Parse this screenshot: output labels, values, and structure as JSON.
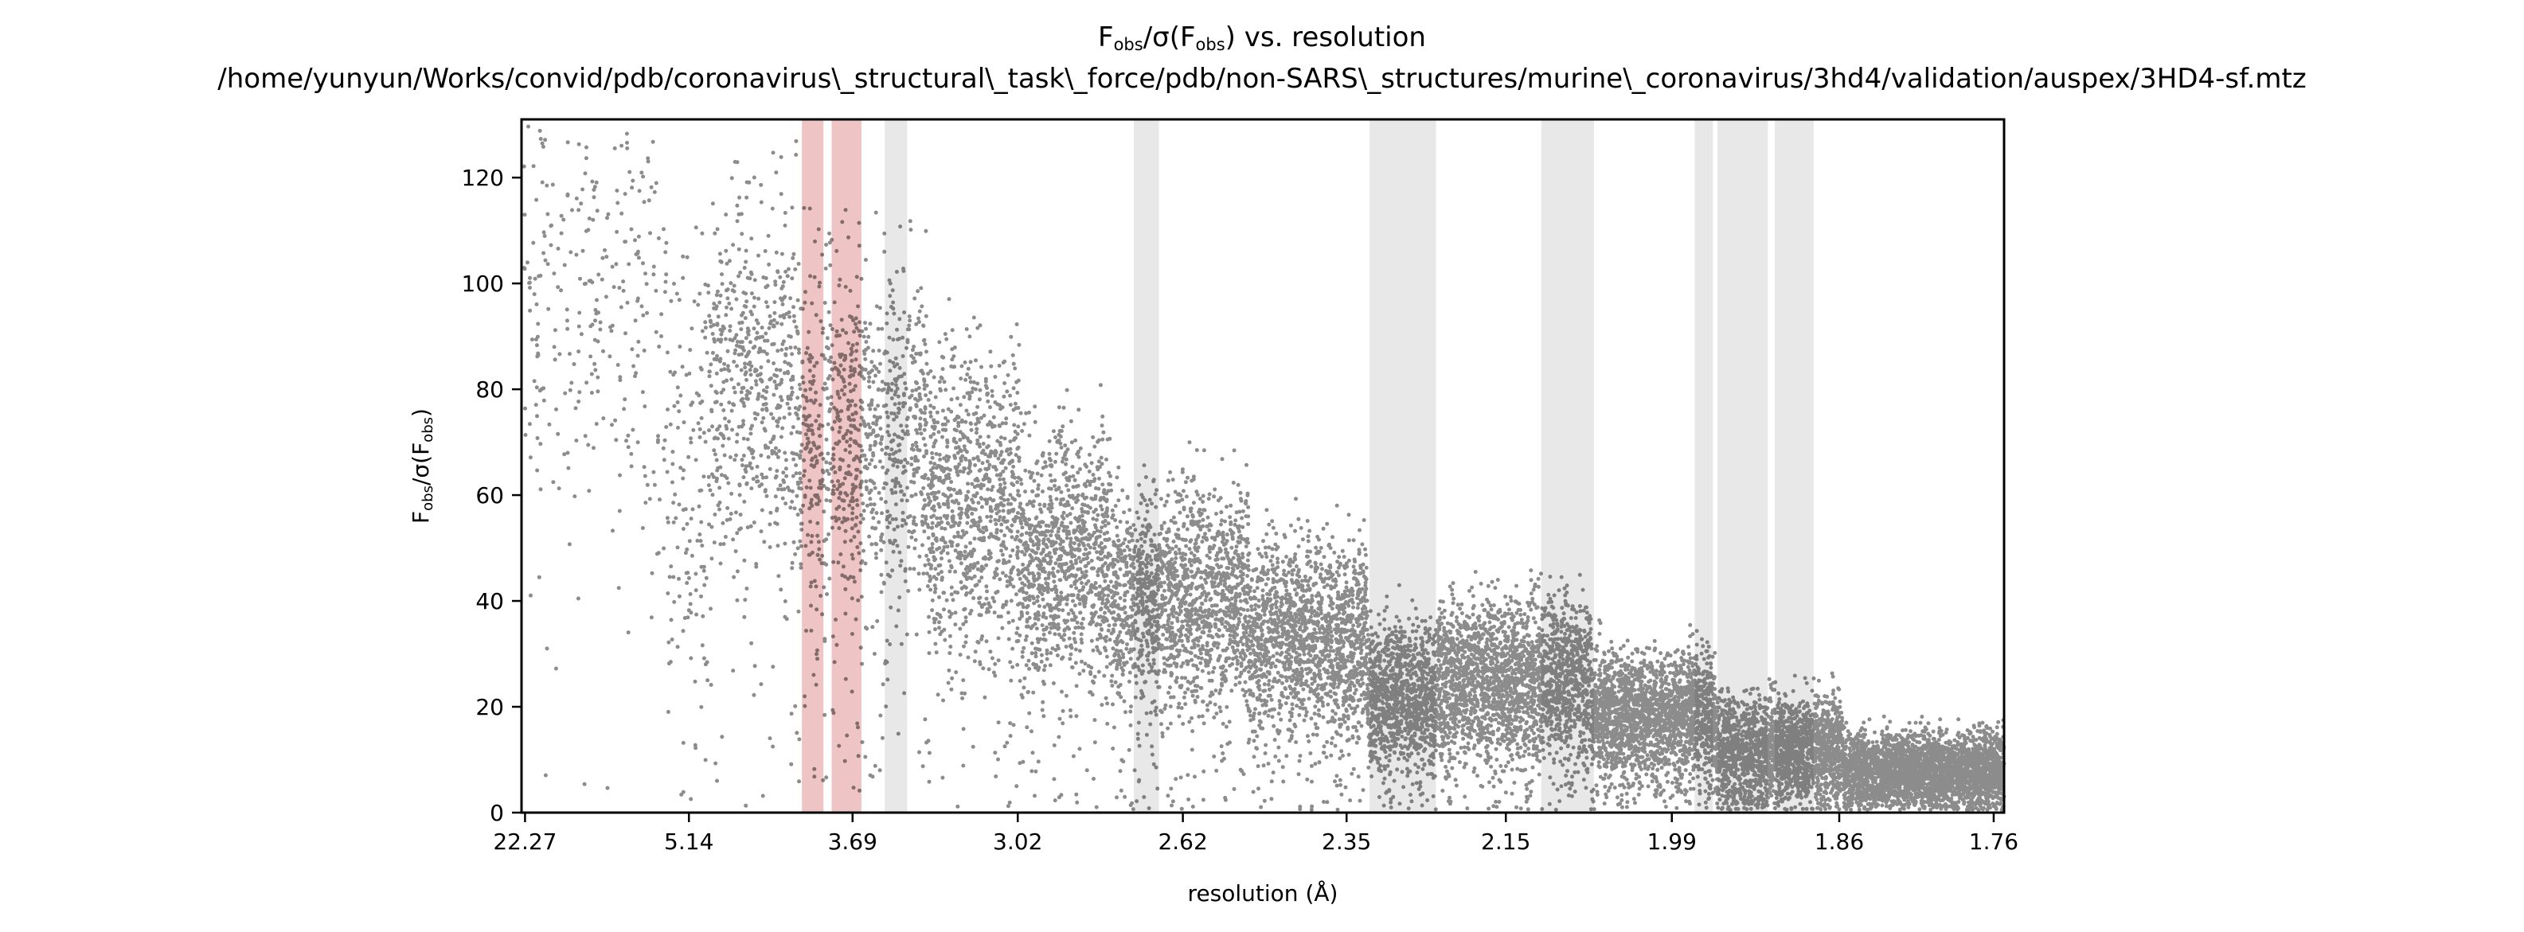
{
  "chart_data": {
    "type": "scatter",
    "title": {
      "parts": [
        {
          "text": "F",
          "sub": false
        },
        {
          "text": "obs",
          "sub": true
        },
        {
          "text": "/σ(F",
          "sub": false
        },
        {
          "text": "obs",
          "sub": true
        },
        {
          "text": ") vs. resolution",
          "sub": false
        }
      ],
      "subtitle": "/home/yunyun/Works/convid/pdb/coronavirus\\_structural\\_task\\_force/pdb/non-SARS\\_structures/murine\\_coronavirus/3hd4/validation/auspex/3HD4-sf.mtz"
    },
    "xlabel": "resolution (Å)",
    "ylabel": {
      "parts": [
        {
          "text": "F",
          "sub": false
        },
        {
          "text": "obs",
          "sub": true
        },
        {
          "text": "/σ(F",
          "sub": false
        },
        {
          "text": "obs",
          "sub": true
        },
        {
          "text": ")",
          "sub": false
        }
      ]
    },
    "x_axis_variable": "1/d^2 (Å^-2)",
    "xlim": [
      0.00125,
      0.3251
    ],
    "ylim": [
      0,
      131
    ],
    "xticks": [
      {
        "value": 0.002016,
        "label": "22.27"
      },
      {
        "value": 0.037814,
        "label": "5.14"
      },
      {
        "value": 0.073558,
        "label": "3.69"
      },
      {
        "value": 0.109646,
        "label": "3.02"
      },
      {
        "value": 0.145715,
        "label": "2.62"
      },
      {
        "value": 0.181474,
        "label": "2.35"
      },
      {
        "value": 0.216263,
        "label": "2.15"
      },
      {
        "value": 0.252525,
        "label": "1.99"
      },
      {
        "value": 0.289096,
        "label": "1.86"
      },
      {
        "value": 0.322831,
        "label": "1.76"
      }
    ],
    "yticks": [
      0,
      20,
      40,
      60,
      80,
      100,
      120
    ],
    "ice_rings_flagged": [
      {
        "x0": 0.0625,
        "x1": 0.0672
      },
      {
        "x0": 0.069,
        "x1": 0.0755
      }
    ],
    "ice_rings": [
      {
        "x0": 0.0806,
        "x1": 0.0855
      },
      {
        "x0": 0.135,
        "x1": 0.1405
      },
      {
        "x0": 0.1865,
        "x1": 0.201
      },
      {
        "x0": 0.224,
        "x1": 0.2355
      },
      {
        "x0": 0.2575,
        "x1": 0.2615
      },
      {
        "x0": 0.2625,
        "x1": 0.2735
      },
      {
        "x0": 0.275,
        "x1": 0.2835
      }
    ],
    "distribution": {
      "description": "approximate F/sigma value envelope by resolution shell (data units)",
      "shells": [
        {
          "x0": 0.00125,
          "x1": 0.0155,
          "center": 100,
          "spread": 55,
          "density": 2
        },
        {
          "x0": 0.0155,
          "x1": 0.033,
          "center": 95,
          "spread": 50,
          "density": 2
        },
        {
          "x0": 0.033,
          "x1": 0.042,
          "center": 60,
          "spread": 55,
          "density": 3
        },
        {
          "x0": 0.042,
          "x1": 0.062,
          "center": 80,
          "spread": 35,
          "density": 6
        },
        {
          "x0": 0.062,
          "x1": 0.08,
          "center": 70,
          "spread": 35,
          "density": 7
        },
        {
          "x0": 0.08,
          "x1": 0.09,
          "center": 70,
          "spread": 30,
          "density": 7
        },
        {
          "x0": 0.09,
          "x1": 0.11,
          "center": 58,
          "spread": 30,
          "density": 9
        },
        {
          "x0": 0.11,
          "x1": 0.13,
          "center": 48,
          "spread": 25,
          "density": 10
        },
        {
          "x0": 0.13,
          "x1": 0.16,
          "center": 40,
          "spread": 22,
          "density": 11
        },
        {
          "x0": 0.16,
          "x1": 0.186,
          "center": 33,
          "spread": 20,
          "density": 12
        },
        {
          "x0": 0.186,
          "x1": 0.201,
          "center": 22,
          "spread": 15,
          "density": 14
        },
        {
          "x0": 0.201,
          "x1": 0.235,
          "center": 25,
          "spread": 16,
          "density": 14
        },
        {
          "x0": 0.235,
          "x1": 0.262,
          "center": 18,
          "spread": 13,
          "density": 15
        },
        {
          "x0": 0.262,
          "x1": 0.29,
          "center": 12,
          "spread": 11,
          "density": 16
        },
        {
          "x0": 0.29,
          "x1": 0.3251,
          "center": 8,
          "spread": 8,
          "density": 16
        }
      ]
    },
    "colors": {
      "points": "#000000",
      "ice_ring": "#e8e8e8",
      "ice_ring_flagged": "#eec4c4",
      "axes": "#000000"
    }
  }
}
